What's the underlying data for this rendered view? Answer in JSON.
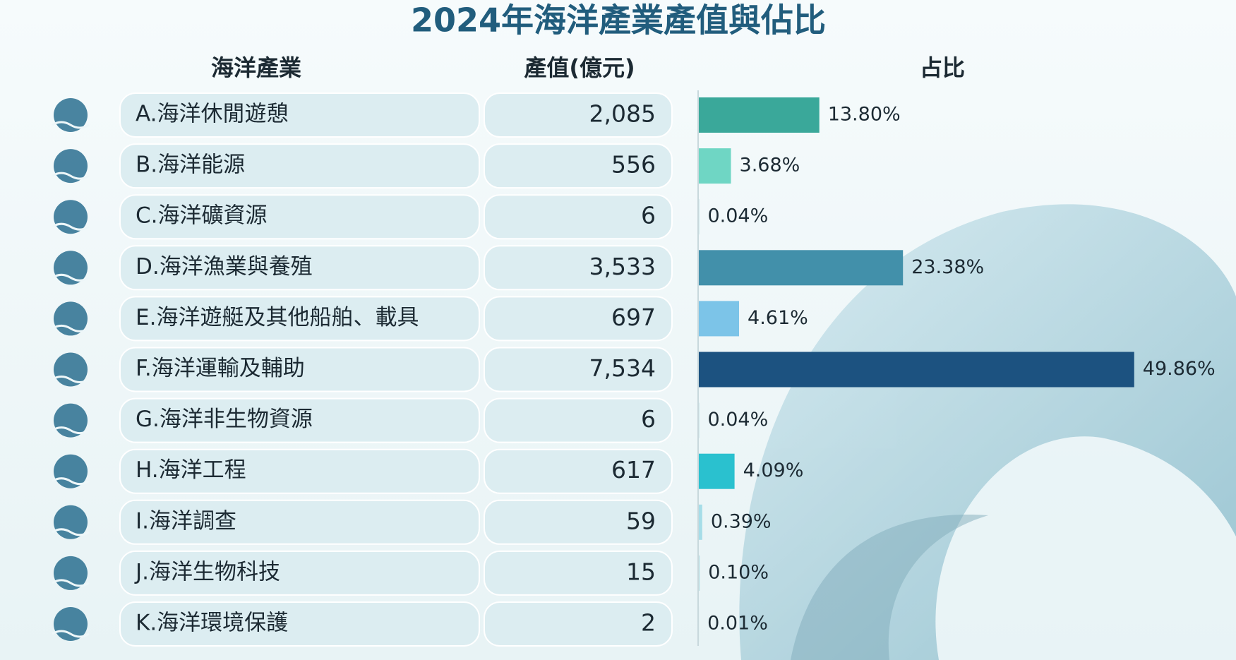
{
  "title": "2024年海洋產業產值與佔比",
  "table": {
    "headers": [
      "海洋產業",
      "產值(億元)",
      "占比"
    ],
    "amounts": [
      "2,085",
      "556",
      "6",
      "3,533",
      "697",
      "7,534",
      "6",
      "617",
      "59",
      "15",
      "2"
    ]
  },
  "chart_data": {
    "type": "bar",
    "orientation": "horizontal",
    "categories": [
      "A.海洋休閒遊憩",
      "B.海洋能源",
      "C.海洋礦資源",
      "D.海洋漁業與養殖",
      "E.海洋遊艇及其他船舶、載具",
      "F.海洋運輸及輔助",
      "G.海洋非生物資源",
      "H.海洋工程",
      "I.海洋調查",
      "J.海洋生物科技",
      "K.海洋環境保護"
    ],
    "values": [
      13.8,
      3.68,
      0.04,
      23.38,
      4.61,
      49.86,
      0.04,
      4.09,
      0.39,
      0.1,
      0.01
    ],
    "value_labels": [
      "13.80%",
      "3.68%",
      "0.04%",
      "23.38%",
      "4.61%",
      "49.86%",
      "0.04%",
      "4.09%",
      "0.39%",
      "0.10%",
      "0.01%"
    ],
    "colors": [
      "#3aa89a",
      "#6fd6c4",
      "#b9dfe3",
      "#4290aa",
      "#7cc4e8",
      "#1c5280",
      "#b9dfe3",
      "#2ac1cf",
      "#a6dde8",
      "#b9dfe3",
      "#b9dfe3"
    ]
  }
}
